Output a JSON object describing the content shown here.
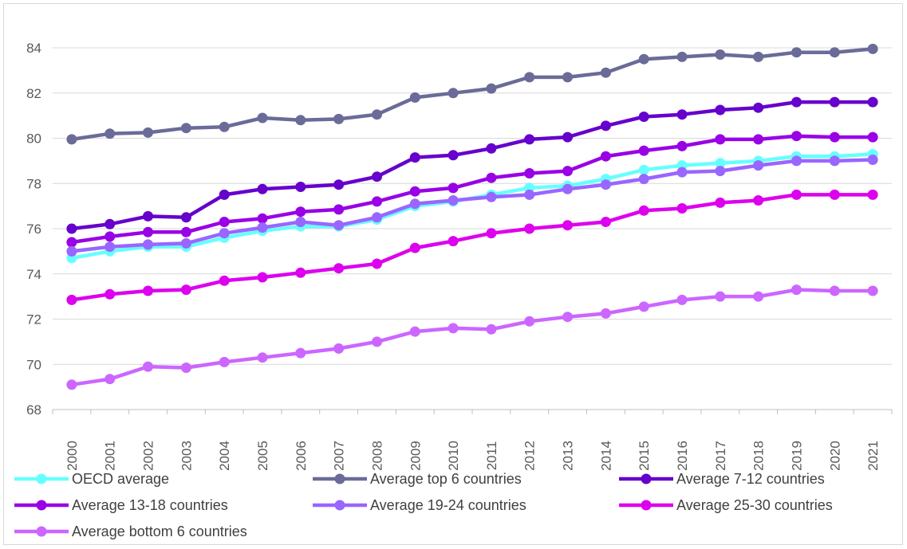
{
  "chart_data": {
    "type": "line",
    "title": "",
    "xlabel": "",
    "ylabel": "",
    "ylim": [
      68,
      85
    ],
    "yticks": [
      68,
      70,
      72,
      74,
      76,
      78,
      80,
      82,
      84
    ],
    "grid": "horizontal",
    "legend_position": "bottom",
    "x": [
      "2000",
      "2001",
      "2002",
      "2003",
      "2004",
      "2005",
      "2006",
      "2007",
      "2008",
      "2009",
      "2010",
      "2011",
      "2012",
      "2013",
      "2014",
      "2015",
      "2016",
      "2017",
      "2018",
      "2019",
      "2020",
      "2021"
    ],
    "series": [
      {
        "name": "OECD average",
        "color": "#66ffff",
        "values": [
          74.7,
          75.0,
          75.2,
          75.2,
          75.6,
          75.9,
          76.1,
          76.1,
          76.4,
          77.0,
          77.2,
          77.5,
          77.8,
          77.9,
          78.2,
          78.6,
          78.8,
          78.9,
          79.0,
          79.2,
          79.2,
          79.3
        ]
      },
      {
        "name": "Average top 6 countries",
        "color": "#6b6b99",
        "values": [
          79.95,
          80.2,
          80.25,
          80.45,
          80.5,
          80.9,
          80.8,
          80.85,
          81.05,
          81.8,
          82.0,
          82.2,
          82.7,
          82.7,
          82.9,
          83.5,
          83.6,
          83.7,
          83.6,
          83.8,
          83.8,
          83.95
        ]
      },
      {
        "name": "Average 7-12 countries",
        "color": "#6600cc",
        "values": [
          76.0,
          76.2,
          76.55,
          76.5,
          77.5,
          77.75,
          77.85,
          77.95,
          78.3,
          79.15,
          79.25,
          79.55,
          79.95,
          80.05,
          80.55,
          80.95,
          81.05,
          81.25,
          81.35,
          81.6,
          81.6,
          81.6
        ]
      },
      {
        "name": "Average 13-18 countries",
        "color": "#9900e6",
        "values": [
          75.4,
          75.65,
          75.85,
          75.85,
          76.3,
          76.45,
          76.75,
          76.85,
          77.2,
          77.65,
          77.8,
          78.25,
          78.45,
          78.55,
          79.2,
          79.45,
          79.65,
          79.95,
          79.95,
          80.1,
          80.05,
          80.05
        ]
      },
      {
        "name": "Average 19-24 countries",
        "color": "#9966ff",
        "values": [
          75.0,
          75.2,
          75.3,
          75.35,
          75.8,
          76.05,
          76.3,
          76.15,
          76.5,
          77.1,
          77.25,
          77.4,
          77.5,
          77.75,
          77.95,
          78.2,
          78.5,
          78.55,
          78.8,
          79.0,
          79.0,
          79.05
        ]
      },
      {
        "name": "Average 25-30 countries",
        "color": "#dd00ee",
        "values": [
          72.85,
          73.1,
          73.25,
          73.3,
          73.7,
          73.85,
          74.05,
          74.25,
          74.45,
          75.15,
          75.45,
          75.8,
          76.0,
          76.15,
          76.3,
          76.8,
          76.9,
          77.15,
          77.25,
          77.5,
          77.5,
          77.5
        ]
      },
      {
        "name": "Average bottom 6 countries",
        "color": "#cc66ff",
        "values": [
          69.1,
          69.35,
          69.9,
          69.85,
          70.1,
          70.3,
          70.5,
          70.7,
          71.0,
          71.45,
          71.6,
          71.55,
          71.9,
          72.1,
          72.25,
          72.55,
          72.85,
          73.0,
          73.0,
          73.3,
          73.25,
          73.25
        ]
      }
    ]
  }
}
